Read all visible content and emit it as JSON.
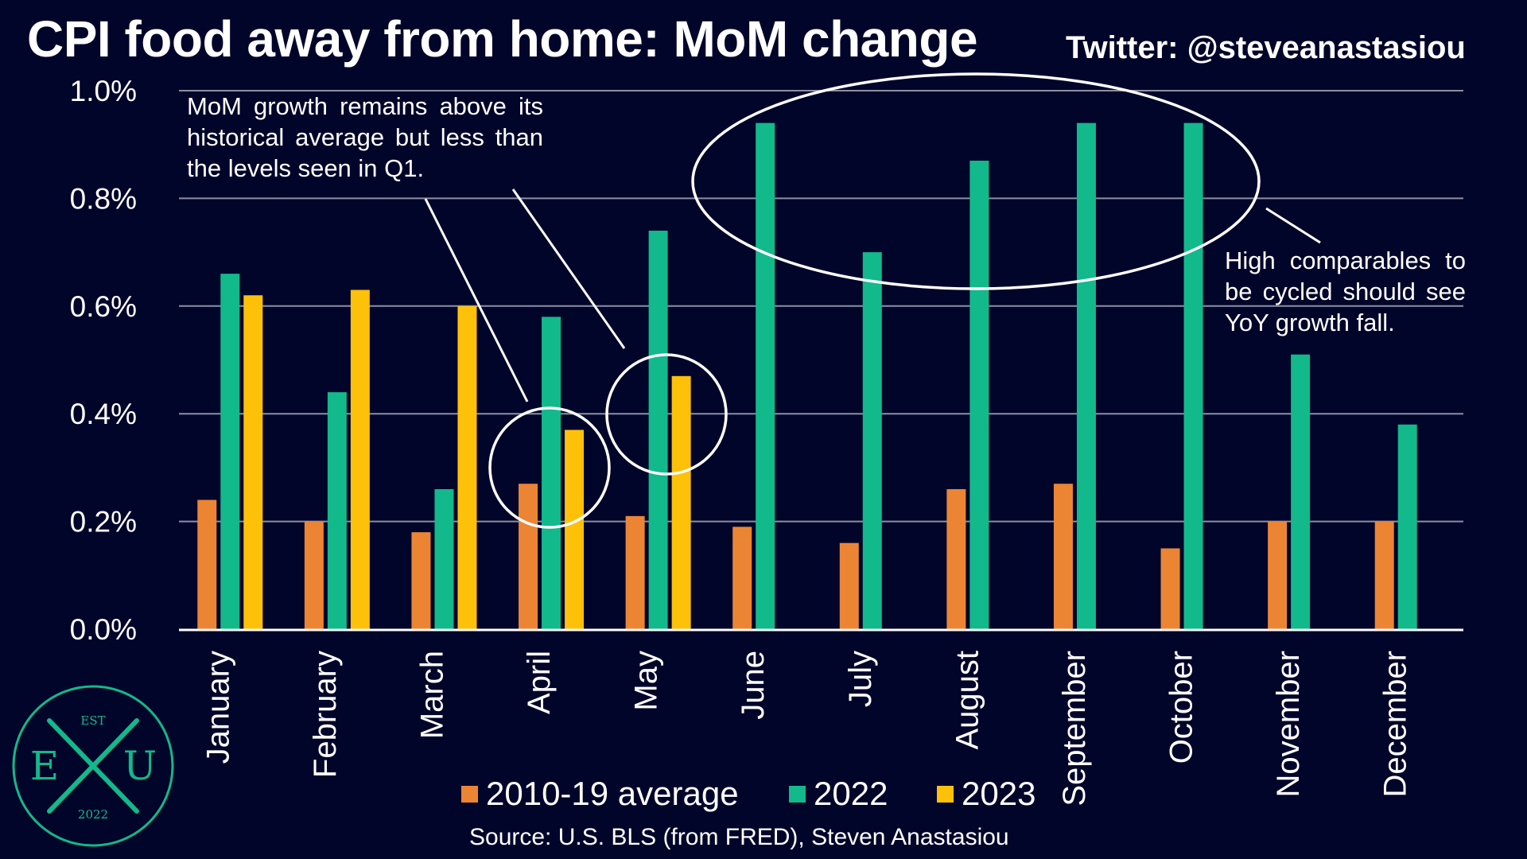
{
  "header": {
    "title": "CPI food away from home: MoM change",
    "handle": "Twitter: @steveanastasiou"
  },
  "annotations": {
    "left_note": "MoM growth remains above its historical average but less than the levels seen in Q1.",
    "right_note": "High comparables to be cycled should see YoY growth fall."
  },
  "source": "Source: U.S. BLS (from FRED), Steven Anastasiou",
  "logo": {
    "top": "EST",
    "left": "E",
    "right": "U",
    "bottom": "2022"
  },
  "colors": {
    "background": "#02052a",
    "avg": "#ec8533",
    "y2022": "#12b98a",
    "y2023": "#fec10a",
    "grid": "#8c8fa3",
    "logo": "#12b98a"
  },
  "chart_data": {
    "type": "bar",
    "title": "CPI food away from home: MoM change",
    "xlabel": "",
    "ylabel": "",
    "ylim": [
      0,
      1.0
    ],
    "y_ticks": [
      "0.0%",
      "0.2%",
      "0.4%",
      "0.6%",
      "0.8%",
      "1.0%"
    ],
    "grid": true,
    "legend_position": "bottom",
    "categories": [
      "January",
      "February",
      "March",
      "April",
      "May",
      "June",
      "July",
      "August",
      "September",
      "October",
      "November",
      "December"
    ],
    "series": [
      {
        "name": "2010-19 average",
        "color_key": "avg",
        "values": [
          0.24,
          0.2,
          0.18,
          0.27,
          0.21,
          0.19,
          0.16,
          0.26,
          0.27,
          0.15,
          0.2,
          0.2
        ]
      },
      {
        "name": "2022",
        "color_key": "y2022",
        "values": [
          0.66,
          0.44,
          0.26,
          0.58,
          0.74,
          0.94,
          0.7,
          0.87,
          0.94,
          0.94,
          0.51,
          0.38
        ]
      },
      {
        "name": "2023",
        "color_key": "y2023",
        "values": [
          0.62,
          0.63,
          0.6,
          0.37,
          0.47,
          null,
          null,
          null,
          null,
          null,
          null,
          null
        ]
      }
    ]
  }
}
